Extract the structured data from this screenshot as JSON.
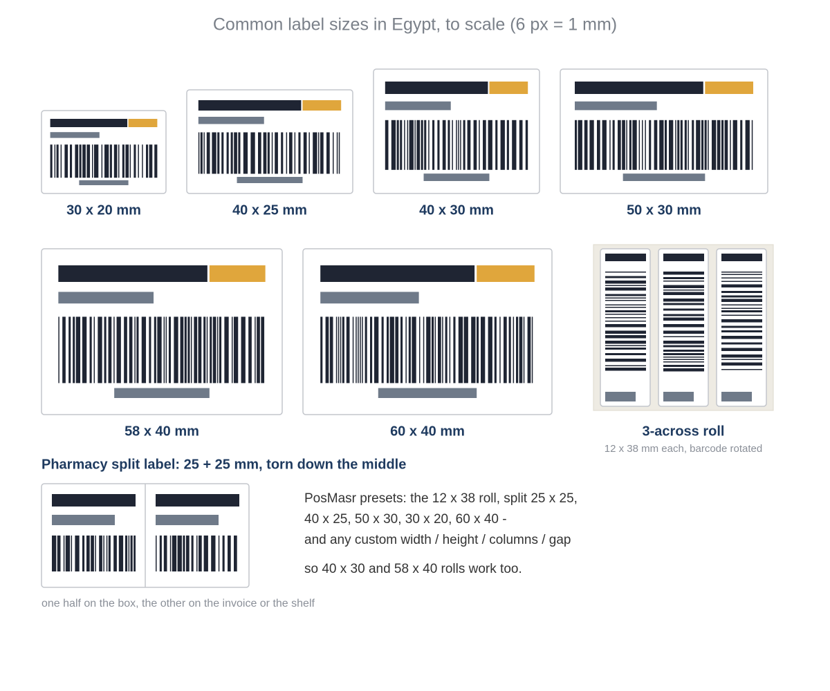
{
  "title": "Common label sizes in Egypt, to scale (6 px = 1 mm)",
  "labels": [
    "30 x 20 mm",
    "40 x 25 mm",
    "40 x 30 mm",
    "50 x 30 mm",
    "58 x 40 mm",
    "60 x 40 mm"
  ],
  "roll": {
    "caption": "3-across roll",
    "note": "12 x 38 mm each, barcode rotated"
  },
  "pharmacy": {
    "heading": "Pharmacy split label: 25 + 25 mm, torn down the middle",
    "note": "one half on the box, the other on the invoice or the shelf"
  },
  "presets": {
    "lines": [
      "PosMasr presets: the 12 x 38 roll, split 25 x 25,",
      "40 x 25, 50 x 30, 30 x 20, 60 x 40 -",
      "and any custom width / height / columns / gap"
    ],
    "footer": "so 40 x 30 and 58 x 40 rolls work too."
  }
}
